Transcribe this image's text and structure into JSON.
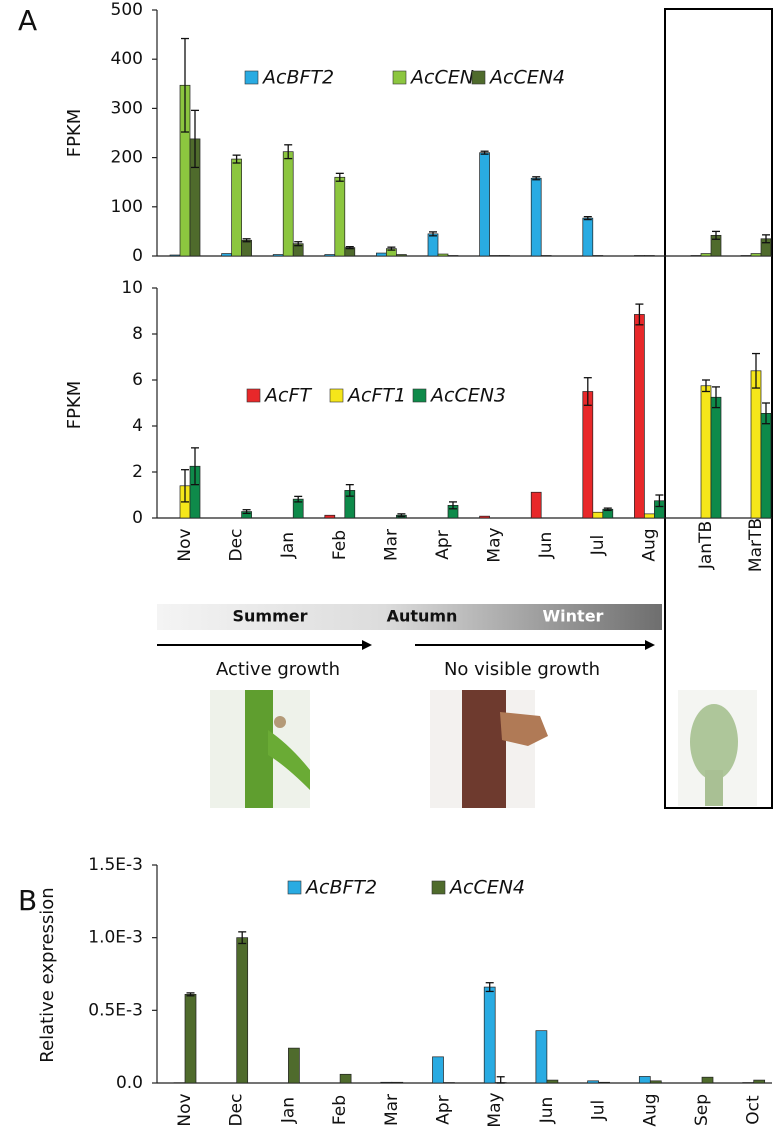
{
  "annotations": {
    "panel_a": "A",
    "panel_b": "B",
    "seasons": [
      "Summer",
      "Autumn",
      "Winter"
    ],
    "active": "Active growth",
    "dormant": "No visible growth"
  },
  "chart_data": [
    {
      "type": "bar",
      "ylabel": "FPKM",
      "ylim": [
        0,
        500
      ],
      "yticks": [
        0,
        100,
        200,
        300,
        400,
        500
      ],
      "series": [
        {
          "name": "AcBFT2",
          "color": "#29abe2",
          "values": [
            2,
            5,
            3,
            3,
            6,
            45,
            210,
            158,
            77,
            1,
            1,
            1
          ],
          "errors": [
            null,
            null,
            null,
            null,
            null,
            4,
            3,
            3,
            3,
            null,
            null,
            null
          ]
        },
        {
          "name": "AcCEN",
          "color": "#8cc63f",
          "values": [
            347,
            197,
            212,
            160,
            15,
            4,
            1,
            1,
            1,
            1,
            5,
            5
          ],
          "errors": [
            95,
            8,
            14,
            8,
            3,
            null,
            null,
            null,
            null,
            null,
            null,
            null
          ]
        },
        {
          "name": "AcCEN4",
          "color": "#4f6b2c",
          "values": [
            238,
            32,
            25,
            17,
            3,
            1,
            1,
            0,
            0,
            0,
            42,
            35
          ],
          "errors": [
            58,
            3,
            4,
            2,
            null,
            null,
            null,
            null,
            null,
            null,
            8,
            8
          ]
        }
      ]
    },
    {
      "type": "bar",
      "ylabel": "FPKM",
      "ylim": [
        0,
        10
      ],
      "yticks": [
        0,
        2,
        4,
        6,
        8,
        10
      ],
      "categories": [
        "Nov",
        "Dec",
        "Jan",
        "Feb",
        "Mar",
        "Apr",
        "May",
        "Jun",
        "Jul",
        "Aug",
        "JanTB",
        "MarTB"
      ],
      "series": [
        {
          "name": "AcFT",
          "color": "#e8282a",
          "values": [
            0,
            0,
            0,
            0.12,
            0,
            0,
            0.08,
            1.12,
            5.5,
            8.85,
            0,
            0
          ],
          "errors": [
            null,
            null,
            null,
            null,
            null,
            null,
            null,
            null,
            0.6,
            0.45,
            null,
            null
          ]
        },
        {
          "name": "AcFT1",
          "color": "#f5e61a",
          "values": [
            1.4,
            0,
            0,
            0,
            0,
            0,
            0,
            0,
            0.25,
            0.18,
            5.75,
            6.4
          ],
          "errors": [
            0.7,
            null,
            null,
            null,
            null,
            null,
            null,
            null,
            null,
            null,
            0.25,
            0.75
          ]
        },
        {
          "name": "AcCEN3",
          "color": "#0e8a4a",
          "values": [
            2.25,
            0.28,
            0.82,
            1.2,
            0.12,
            0.55,
            0,
            0,
            0.38,
            0.75,
            5.25,
            4.55
          ],
          "errors": [
            0.8,
            0.08,
            0.12,
            0.25,
            0.06,
            0.15,
            null,
            null,
            0.05,
            0.25,
            0.45,
            0.45
          ]
        }
      ]
    },
    {
      "type": "bar",
      "ylabel": "Relative expression",
      "ylim": [
        0,
        0.0015
      ],
      "yticks": [
        {
          "value": 0,
          "label": "0.0"
        },
        {
          "value": 0.0005,
          "label": "0.5E-3"
        },
        {
          "value": 0.001,
          "label": "1.0E-3"
        },
        {
          "value": 0.0015,
          "label": "1.5E-3"
        }
      ],
      "categories": [
        "Nov",
        "Dec",
        "Jan",
        "Feb",
        "Mar",
        "Apr",
        "May",
        "Jun",
        "Jul",
        "Aug",
        "Sep",
        "Oct"
      ],
      "series": [
        {
          "name": "AcBFT2",
          "color": "#29abe2",
          "values": [
            2e-06,
            0,
            0,
            0,
            5e-06,
            0.00018,
            0.00066,
            0.00036,
            1.5e-05,
            4.5e-05,
            0,
            3e-06
          ],
          "errors": [
            null,
            null,
            null,
            null,
            null,
            null,
            3e-05,
            null,
            null,
            null,
            null,
            null
          ]
        },
        {
          "name": "AcCEN4",
          "color": "#4f6b2c",
          "values": [
            0.00061,
            0.001,
            0.00024,
            6e-05,
            5e-06,
            3e-06,
            3e-06,
            2e-05,
            5e-06,
            1.5e-05,
            4e-05,
            2e-05
          ],
          "errors": [
            1e-05,
            4e-05,
            null,
            null,
            null,
            null,
            4e-05,
            null,
            null,
            null,
            null,
            null
          ]
        }
      ]
    }
  ]
}
